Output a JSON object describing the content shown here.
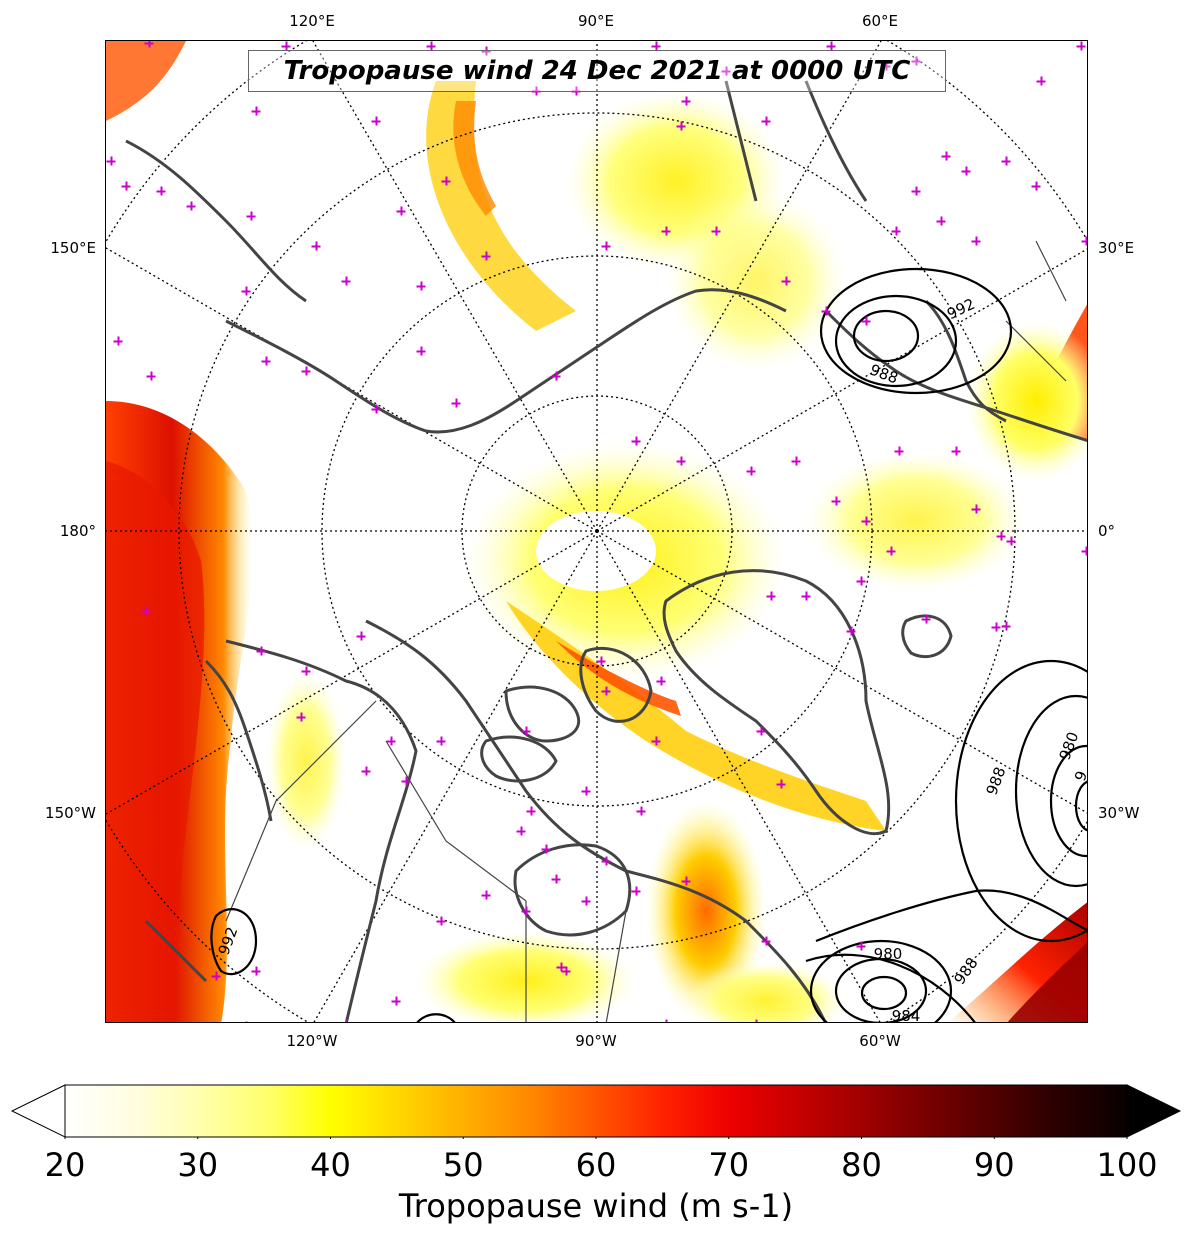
{
  "map": {
    "title": "Tropopause wind 24 Dec 2021 at 0000 UTC",
    "projection": "north-polar-stereographic",
    "variable": "Tropopause wind",
    "units": "m s-1",
    "overlay": "mean sea level pressure contours (black)",
    "markers": "magenta plus signs",
    "longitude_labels_top": [
      "120°E",
      "90°E",
      "60°E"
    ],
    "longitude_labels_bottom": [
      "120°W",
      "90°W",
      "60°W"
    ],
    "longitude_labels_left": [
      "150°E",
      "180°",
      "150°W"
    ],
    "longitude_labels_right": [
      "30°E",
      "0°",
      "30°W"
    ],
    "contour_labels": [
      "992",
      "988",
      "980",
      "988",
      "992",
      "980",
      "988",
      "984",
      "9"
    ]
  },
  "colorbar": {
    "min": 20,
    "max": 100,
    "extend": "both",
    "tick_labels": [
      "20",
      "30",
      "40",
      "50",
      "60",
      "70",
      "80",
      "90",
      "100"
    ],
    "label": "Tropopause wind (m s-1)",
    "colors": [
      "#ffffff",
      "#ffffcc",
      "#ffff66",
      "#ffff00",
      "#ffcc00",
      "#ff9900",
      "#ff6600",
      "#ff0000",
      "#cc0000",
      "#880000",
      "#330000",
      "#000000"
    ]
  }
}
